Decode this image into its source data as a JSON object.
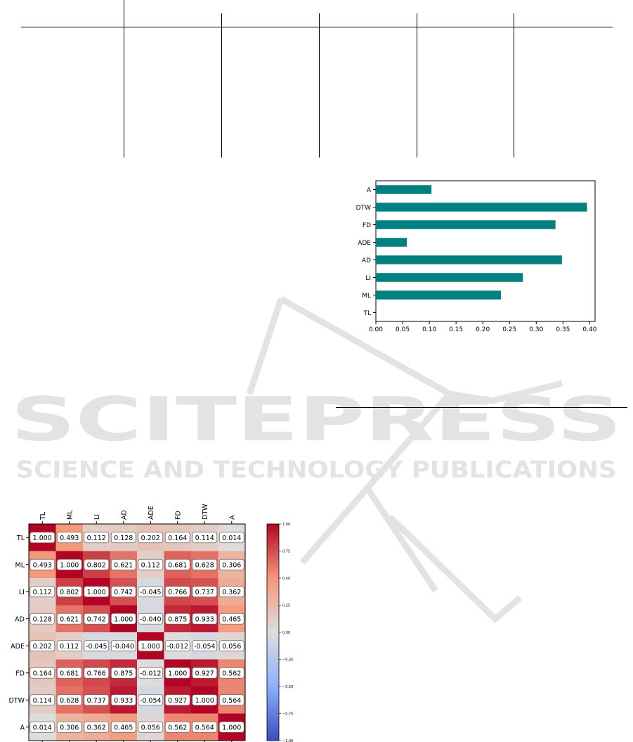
{
  "watermark": {
    "title": "SCITEPRESS",
    "subtitle": "SCIENCE AND TECHNOLOGY PUBLICATIONS",
    "color": "#e3e3e3"
  },
  "bar_color": "#008080",
  "chart_data": [
    {
      "type": "bar",
      "orientation": "horizontal",
      "categories": [
        "TL",
        "ML",
        "LI",
        "AD",
        "ADE",
        "FD",
        "DTW",
        "A"
      ],
      "values": [
        0.0,
        0.234,
        0.275,
        0.348,
        0.058,
        0.336,
        0.395,
        0.104
      ],
      "xlim": [
        0.0,
        0.41
      ],
      "xticks": [
        "0.00",
        "0.05",
        "0.10",
        "0.15",
        "0.20",
        "0.25",
        "0.30",
        "0.35",
        "0.40"
      ],
      "xtick_values": [
        0,
        0.05,
        0.1,
        0.15,
        0.2,
        0.25,
        0.3,
        0.35,
        0.4
      ],
      "title": "",
      "xlabel": "",
      "ylabel": "",
      "grid": false
    },
    {
      "type": "heatmap",
      "labels": [
        "TL",
        "ML",
        "LI",
        "AD",
        "ADE",
        "FD",
        "DTW",
        "A"
      ],
      "matrix": [
        [
          1.0,
          0.493,
          0.112,
          0.128,
          0.202,
          0.164,
          0.114,
          0.014
        ],
        [
          0.493,
          1.0,
          0.802,
          0.621,
          0.112,
          0.681,
          0.628,
          0.306
        ],
        [
          0.112,
          0.802,
          1.0,
          0.742,
          -0.045,
          0.766,
          0.737,
          0.362
        ],
        [
          0.128,
          0.621,
          0.742,
          1.0,
          -0.04,
          0.875,
          0.933,
          0.465
        ],
        [
          0.202,
          0.112,
          -0.045,
          -0.04,
          1.0,
          -0.012,
          -0.054,
          0.056
        ],
        [
          0.164,
          0.681,
          0.766,
          0.875,
          -0.012,
          1.0,
          0.927,
          0.562
        ],
        [
          0.114,
          0.628,
          0.737,
          0.933,
          -0.054,
          0.927,
          1.0,
          0.564
        ],
        [
          0.014,
          0.306,
          0.362,
          0.465,
          0.056,
          0.562,
          0.564,
          1.0
        ]
      ],
      "colormap": "coolwarm",
      "vmin": -1.0,
      "vmax": 1.0,
      "colorbar_ticks": [
        "1.00",
        "0.75",
        "0.50",
        "0.25",
        "0.00",
        "−0.25",
        "−0.50",
        "−0.75",
        "−1.00"
      ],
      "colorbar_tick_values": [
        1.0,
        0.75,
        0.5,
        0.25,
        0.0,
        -0.25,
        -0.5,
        -0.75,
        -1.0
      ]
    }
  ]
}
